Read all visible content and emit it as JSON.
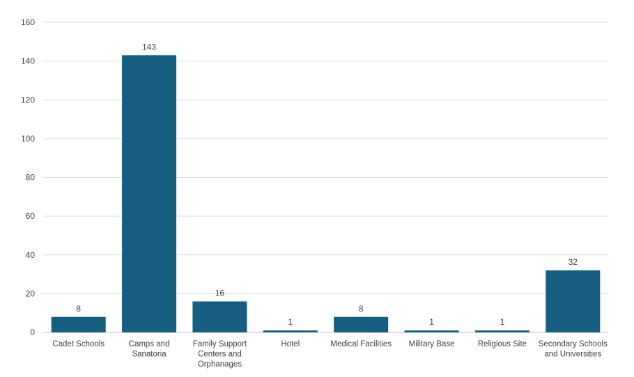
{
  "chart_data": {
    "type": "bar",
    "categories": [
      "Cadet Schools",
      "Camps and Sanatoria",
      "Family Support Centers and Orphanages",
      "Hotel",
      "Medical Facilities",
      "Military Base",
      "Religious Site",
      "Secondary Schools and Universities"
    ],
    "values": [
      8,
      143,
      16,
      1,
      8,
      1,
      1,
      32
    ],
    "title": "",
    "xlabel": "",
    "ylabel": "",
    "ylim": [
      0,
      160
    ],
    "yticks": [
      0,
      20,
      40,
      60,
      80,
      100,
      120,
      140,
      160
    ],
    "grid": true,
    "legend": "none",
    "bar_color": "#155e7f",
    "data_labels": true
  }
}
